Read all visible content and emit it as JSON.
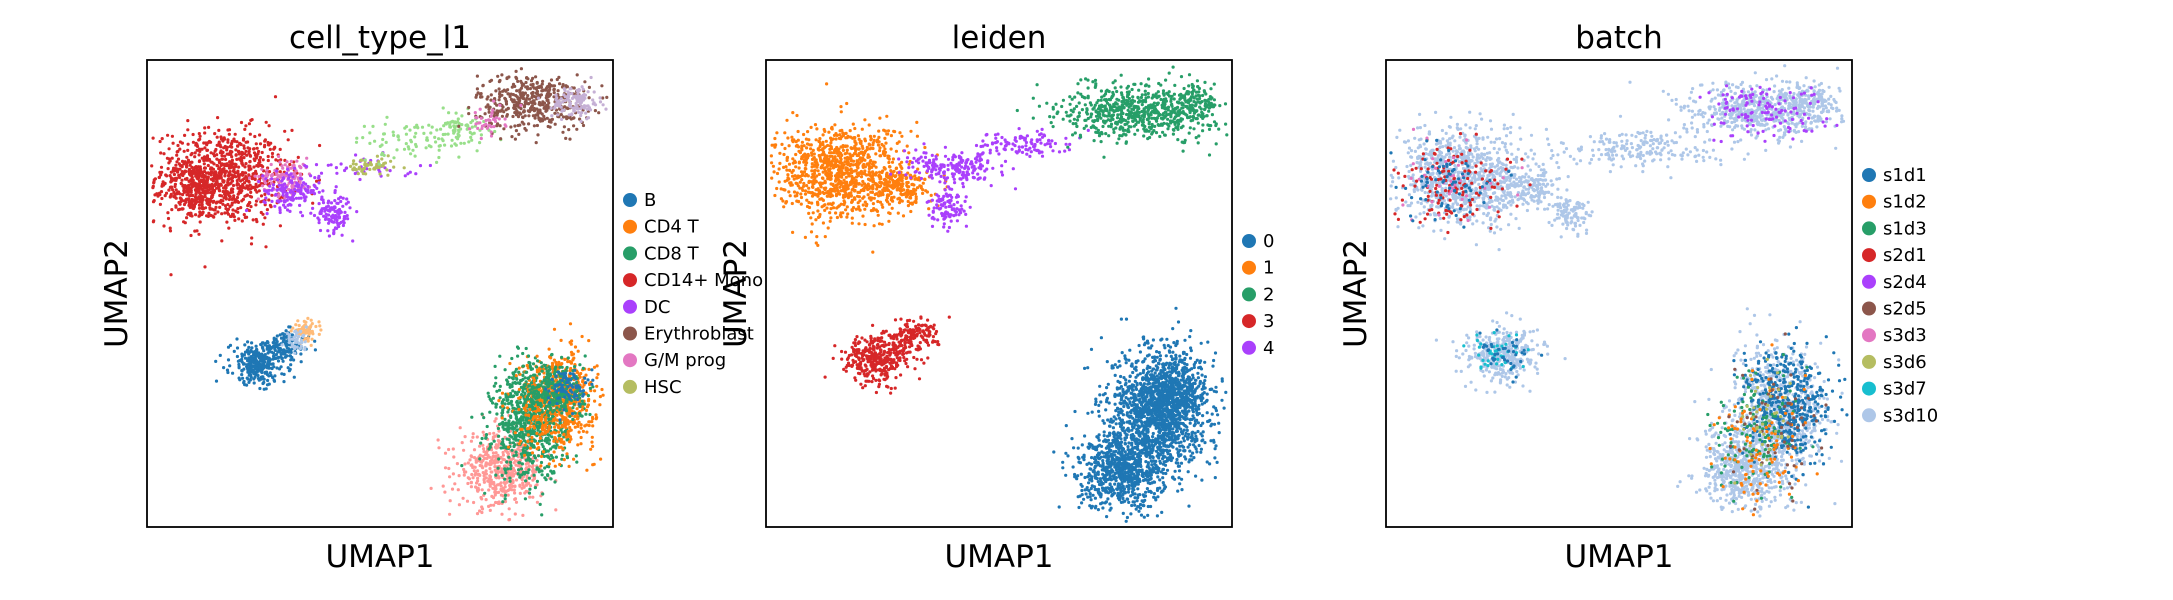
{
  "figure": {
    "type": "scatter",
    "kind": "UMAP embedding grid"
  },
  "chart_data": [
    {
      "type": "scatter",
      "title": "cell_type_l1",
      "xlabel": "UMAP1",
      "ylabel": "UMAP2",
      "xticks": false,
      "yticks": false,
      "grid": false,
      "legend_position": "right",
      "legend": [
        {
          "label": "B",
          "color": "#1f77b4"
        },
        {
          "label": "CD4 T",
          "color": "#ff7f0e"
        },
        {
          "label": "CD8 T",
          "color": "#279e68"
        },
        {
          "label": "CD14+ Mono",
          "color": "#d62728"
        },
        {
          "label": "DC",
          "color": "#aa40fc"
        },
        {
          "label": "Erythroblast",
          "color": "#8c564b"
        },
        {
          "label": "G/M prog",
          "color": "#e377c2"
        },
        {
          "label": "HSC",
          "color": "#b5bd61"
        }
      ],
      "unlabeled_colors": [
        "#ff9896",
        "#aec7e8",
        "#98df8a",
        "#c5b0d5",
        "#ffbb78"
      ],
      "xlim": [
        0,
        100
      ],
      "ylim": [
        0,
        100
      ],
      "clusters": [
        {
          "color": "#d62728",
          "center": [
            16,
            75
          ],
          "spread": [
            7,
            5
          ],
          "n": 900
        },
        {
          "color": "#d62728",
          "center": [
            10,
            72
          ],
          "spread": [
            3,
            3
          ],
          "n": 200
        },
        {
          "color": "#e377c2",
          "center": [
            30,
            75
          ],
          "spread": [
            3,
            2
          ],
          "n": 120
        },
        {
          "color": "#aa40fc",
          "center": [
            31,
            72
          ],
          "spread": [
            3,
            2
          ],
          "n": 150
        },
        {
          "color": "#aa40fc",
          "center": [
            40,
            67
          ],
          "spread": [
            2,
            2
          ],
          "n": 120
        },
        {
          "color": "#aa40fc",
          "center": [
            47,
            77
          ],
          "spread": [
            6,
            1.2
          ],
          "n": 40
        },
        {
          "color": "#b5bd61",
          "center": [
            48,
            77
          ],
          "spread": [
            2.5,
            1
          ],
          "n": 60
        },
        {
          "color": "#98df8a",
          "center": [
            58,
            83
          ],
          "spread": [
            7,
            2
          ],
          "n": 90
        },
        {
          "color": "#98df8a",
          "center": [
            67,
            86
          ],
          "spread": [
            3,
            1.5
          ],
          "n": 60
        },
        {
          "color": "#8c564b",
          "center": [
            83,
            91
          ],
          "spread": [
            6,
            3
          ],
          "n": 450
        },
        {
          "color": "#c5b0d5",
          "center": [
            92,
            91
          ],
          "spread": [
            2.5,
            1.8
          ],
          "n": 120
        },
        {
          "color": "#e377c2",
          "center": [
            73,
            87
          ],
          "spread": [
            2,
            1.5
          ],
          "n": 40
        },
        {
          "color": "#1f77b4",
          "center": [
            24,
            35
          ],
          "spread": [
            3,
            2.2
          ],
          "n": 320
        },
        {
          "color": "#1f77b4",
          "center": [
            30,
            39
          ],
          "spread": [
            2.5,
            1.5
          ],
          "n": 100
        },
        {
          "color": "#ffbb78",
          "center": [
            34,
            42
          ],
          "spread": [
            1.4,
            1
          ],
          "n": 70
        },
        {
          "color": "#aec7e8",
          "center": [
            32,
            40
          ],
          "spread": [
            1.2,
            1
          ],
          "n": 40
        },
        {
          "color": "#ff9896",
          "center": [
            76,
            12
          ],
          "spread": [
            4.5,
            4
          ],
          "n": 500
        },
        {
          "color": "#279e68",
          "center": [
            82,
            22
          ],
          "spread": [
            4,
            6
          ],
          "n": 700
        },
        {
          "color": "#ff7f0e",
          "center": [
            88,
            27
          ],
          "spread": [
            4,
            5
          ],
          "n": 700
        },
        {
          "color": "#279e68",
          "center": [
            87,
            29
          ],
          "spread": [
            3.5,
            3.5
          ],
          "n": 350
        },
        {
          "color": "#1f77b4",
          "center": [
            90,
            30
          ],
          "spread": [
            2,
            2
          ],
          "n": 80
        }
      ]
    },
    {
      "type": "scatter",
      "title": "leiden",
      "xlabel": "UMAP1",
      "ylabel": "UMAP2",
      "xticks": false,
      "yticks": false,
      "grid": false,
      "legend_position": "right",
      "legend": [
        {
          "label": "0",
          "color": "#1f77b4"
        },
        {
          "label": "1",
          "color": "#ff7f0e"
        },
        {
          "label": "2",
          "color": "#279e68"
        },
        {
          "label": "3",
          "color": "#d62728"
        },
        {
          "label": "4",
          "color": "#aa40fc"
        }
      ],
      "xlim": [
        0,
        100
      ],
      "ylim": [
        0,
        100
      ],
      "clusters": [
        {
          "color": "#ff7f0e",
          "center": [
            16,
            76
          ],
          "spread": [
            7,
            5
          ],
          "n": 1000
        },
        {
          "color": "#ff7f0e",
          "center": [
            29,
            73
          ],
          "spread": [
            3,
            2
          ],
          "n": 180
        },
        {
          "color": "#aa40fc",
          "center": [
            40,
            77
          ],
          "spread": [
            5,
            1.6
          ],
          "n": 200
        },
        {
          "color": "#aa40fc",
          "center": [
            39,
            68
          ],
          "spread": [
            2,
            2
          ],
          "n": 100
        },
        {
          "color": "#aa40fc",
          "center": [
            55,
            82
          ],
          "spread": [
            5,
            1.5
          ],
          "n": 110
        },
        {
          "color": "#279e68",
          "center": [
            80,
            89
          ],
          "spread": [
            8,
            3
          ],
          "n": 650
        },
        {
          "color": "#279e68",
          "center": [
            92,
            91
          ],
          "spread": [
            2.5,
            1.8
          ],
          "n": 120
        },
        {
          "color": "#d62728",
          "center": [
            24,
            36
          ],
          "spread": [
            3.5,
            2.5
          ],
          "n": 350
        },
        {
          "color": "#d62728",
          "center": [
            31,
            41
          ],
          "spread": [
            3,
            1.6
          ],
          "n": 150
        },
        {
          "color": "#1f77b4",
          "center": [
            76,
            12
          ],
          "spread": [
            4.5,
            4
          ],
          "n": 700
        },
        {
          "color": "#1f77b4",
          "center": [
            84,
            24
          ],
          "spread": [
            5,
            7
          ],
          "n": 1400
        },
        {
          "color": "#1f77b4",
          "center": [
            88,
            29
          ],
          "spread": [
            3.5,
            3.5
          ],
          "n": 400
        }
      ]
    },
    {
      "type": "scatter",
      "title": "batch",
      "xlabel": "UMAP1",
      "ylabel": "UMAP2",
      "xticks": false,
      "yticks": false,
      "grid": false,
      "legend_position": "right",
      "legend": [
        {
          "label": "s1d1",
          "color": "#1f77b4"
        },
        {
          "label": "s1d2",
          "color": "#ff7f0e"
        },
        {
          "label": "s1d3",
          "color": "#279e68"
        },
        {
          "label": "s2d1",
          "color": "#d62728"
        },
        {
          "label": "s2d4",
          "color": "#aa40fc"
        },
        {
          "label": "s2d5",
          "color": "#8c564b"
        },
        {
          "label": "s3d3",
          "color": "#e377c2"
        },
        {
          "label": "s3d6",
          "color": "#b5bd61"
        },
        {
          "label": "s3d7",
          "color": "#17becf"
        },
        {
          "label": "s3d10",
          "color": "#aec7e8"
        }
      ],
      "xlim": [
        0,
        100
      ],
      "ylim": [
        0,
        100
      ],
      "clusters": [
        {
          "color": "#aec7e8",
          "center": [
            16,
            75
          ],
          "spread": [
            7,
            5
          ],
          "n": 900
        },
        {
          "color": "#aec7e8",
          "center": [
            30,
            73
          ],
          "spread": [
            4,
            2
          ],
          "n": 180
        },
        {
          "color": "#aec7e8",
          "center": [
            40,
            67
          ],
          "spread": [
            2,
            2
          ],
          "n": 100
        },
        {
          "color": "#aec7e8",
          "center": [
            55,
            81
          ],
          "spread": [
            8,
            2
          ],
          "n": 200
        },
        {
          "color": "#aec7e8",
          "center": [
            80,
            89
          ],
          "spread": [
            8,
            3
          ],
          "n": 600
        },
        {
          "color": "#aec7e8",
          "center": [
            92,
            91
          ],
          "spread": [
            2.5,
            1.8
          ],
          "n": 100
        },
        {
          "color": "#aec7e8",
          "center": [
            25,
            37
          ],
          "spread": [
            4,
            3
          ],
          "n": 350
        },
        {
          "color": "#aec7e8",
          "center": [
            76,
            12
          ],
          "spread": [
            4.5,
            4
          ],
          "n": 500
        },
        {
          "color": "#aec7e8",
          "center": [
            84,
            24
          ],
          "spread": [
            5,
            7
          ],
          "n": 800
        },
        {
          "color": "#1f77b4",
          "center": [
            86,
            26
          ],
          "spread": [
            4.5,
            6
          ],
          "n": 450
        },
        {
          "color": "#d62728",
          "center": [
            15,
            74
          ],
          "spread": [
            6,
            4.5
          ],
          "n": 130
        },
        {
          "color": "#aa40fc",
          "center": [
            80,
            89
          ],
          "spread": [
            7,
            3
          ],
          "n": 120
        },
        {
          "color": "#279e68",
          "center": [
            80,
            20
          ],
          "spread": [
            5,
            7
          ],
          "n": 120
        },
        {
          "color": "#ff7f0e",
          "center": [
            80,
            18
          ],
          "spread": [
            5,
            7
          ],
          "n": 100
        },
        {
          "color": "#8c564b",
          "center": [
            84,
            22
          ],
          "spread": [
            5,
            7
          ],
          "n": 60
        },
        {
          "color": "#e377c2",
          "center": [
            16,
            74
          ],
          "spread": [
            6,
            4
          ],
          "n": 40
        },
        {
          "color": "#17becf",
          "center": [
            24,
            37
          ],
          "spread": [
            3,
            2
          ],
          "n": 40
        },
        {
          "color": "#b5bd61",
          "center": [
            82,
            24
          ],
          "spread": [
            4,
            6
          ],
          "n": 40
        },
        {
          "color": "#1f77b4",
          "center": [
            14,
            74
          ],
          "spread": [
            6,
            4
          ],
          "n": 80
        },
        {
          "color": "#1f77b4",
          "center": [
            25,
            37
          ],
          "spread": [
            3,
            2
          ],
          "n": 40
        }
      ]
    }
  ]
}
